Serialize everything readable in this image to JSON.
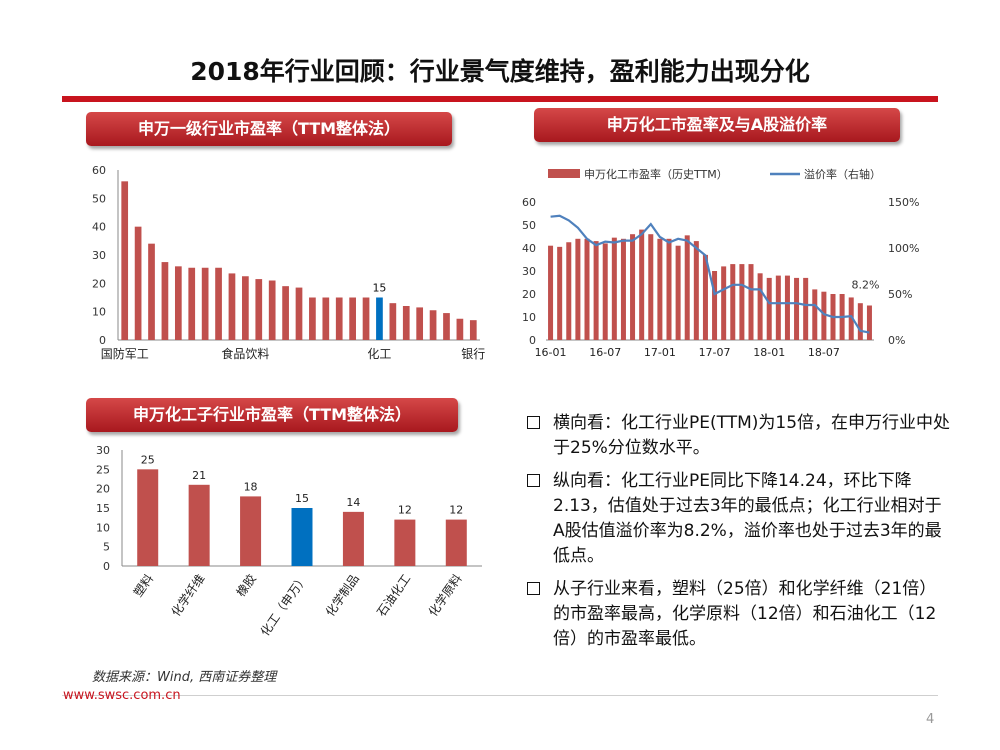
{
  "page_title": "2018年行业回顾：行业景气度维持，盈利能力出现分化",
  "panels": {
    "industry_pe": "申万一级行业市盈率（TTM整体法）",
    "chem_pe_premium": "申万化工市盈率及与A股溢价率",
    "sub_industry_pe": "申万化工子行业市盈率（TTM整体法）"
  },
  "colors": {
    "accent": "#c8141e",
    "bar": "#c0504d",
    "highlight": "#0070c0",
    "line": "#4f81bd"
  },
  "chart_data": [
    {
      "type": "bar",
      "title": "申万一级行业市盈率（TTM整体法）",
      "ylim": [
        0,
        60
      ],
      "yticks": [
        "0",
        "10",
        "20",
        "30",
        "40",
        "50",
        "60"
      ],
      "x_labels": [
        "国防军工",
        "食品饮料",
        "化工",
        "银行"
      ],
      "values": [
        56,
        40,
        34,
        27.5,
        26,
        25.5,
        25.5,
        25.5,
        23.5,
        22.5,
        21.5,
        21,
        19,
        18.5,
        15,
        15,
        15,
        15,
        15,
        15,
        13,
        12,
        11.5,
        10.5,
        9.5,
        7.5,
        7
      ],
      "highlight_index": 19,
      "highlight_label": "15"
    },
    {
      "type": "bar+line",
      "title": "申万化工市盈率及与A股溢价率",
      "legend": [
        "申万化工市盈率（历史TTM）",
        "溢价率（右轴）"
      ],
      "ylim_left": [
        0,
        60
      ],
      "yticks_left": [
        "0",
        "10",
        "20",
        "30",
        "40",
        "50",
        "60"
      ],
      "ylim_right": [
        0,
        150
      ],
      "yticks_right": [
        "0%",
        "50%",
        "100%",
        "150%"
      ],
      "x_labels": [
        "16-01",
        "16-07",
        "17-01",
        "17-07",
        "18-01",
        "18-07"
      ],
      "bars": [
        41,
        40.5,
        42.5,
        44,
        44,
        43,
        42,
        44.5,
        44,
        46,
        48,
        46,
        44,
        44,
        41,
        45.5,
        43,
        37,
        30,
        32,
        33,
        33,
        33,
        29,
        27,
        28,
        28,
        27,
        27,
        22,
        21,
        20,
        20,
        18.5,
        16,
        15
      ],
      "premium": [
        134,
        135,
        130,
        122,
        110,
        103,
        107,
        106,
        108,
        108,
        115,
        126,
        112,
        106,
        110,
        108,
        100,
        92,
        50,
        55,
        60,
        60,
        55,
        55,
        40,
        40,
        40,
        40,
        38,
        38,
        28,
        25,
        25,
        26,
        10,
        8
      ],
      "end_label": "8.2%"
    },
    {
      "type": "bar",
      "title": "申万化工子行业市盈率（TTM整体法）",
      "ylim": [
        0,
        30
      ],
      "yticks": [
        "0",
        "5",
        "10",
        "15",
        "20",
        "25",
        "30"
      ],
      "categories": [
        "塑料",
        "化学纤维",
        "橡胶",
        "化工（申万）",
        "化学制品",
        "石油化工",
        "化学原料"
      ],
      "values": [
        25,
        21,
        18,
        15,
        14,
        12,
        12
      ],
      "value_labels": [
        "25",
        "21",
        "18",
        "15",
        "14",
        "12",
        "12"
      ],
      "highlight_index": 3
    }
  ],
  "bullets": [
    "横向看：化工行业PE(TTM)为15倍，在申万行业中处于25%分位数水平。",
    "纵向看：化工行业PE同比下降14.24，环比下降2.13，估值处于过去3年的最低点；化工行业相对于A股估值溢价率为8.2%，溢价率也处于过去3年的最低点。",
    "从子行业来看，塑料（25倍）和化学纤维（21倍）的市盈率最高，化学原料（12倍）和石油化工（12倍）的市盈率最低。"
  ],
  "footer": {
    "source": "数据来源：Wind, 西南证券整理",
    "url": "www.swsc.com.cn",
    "page": "4"
  }
}
